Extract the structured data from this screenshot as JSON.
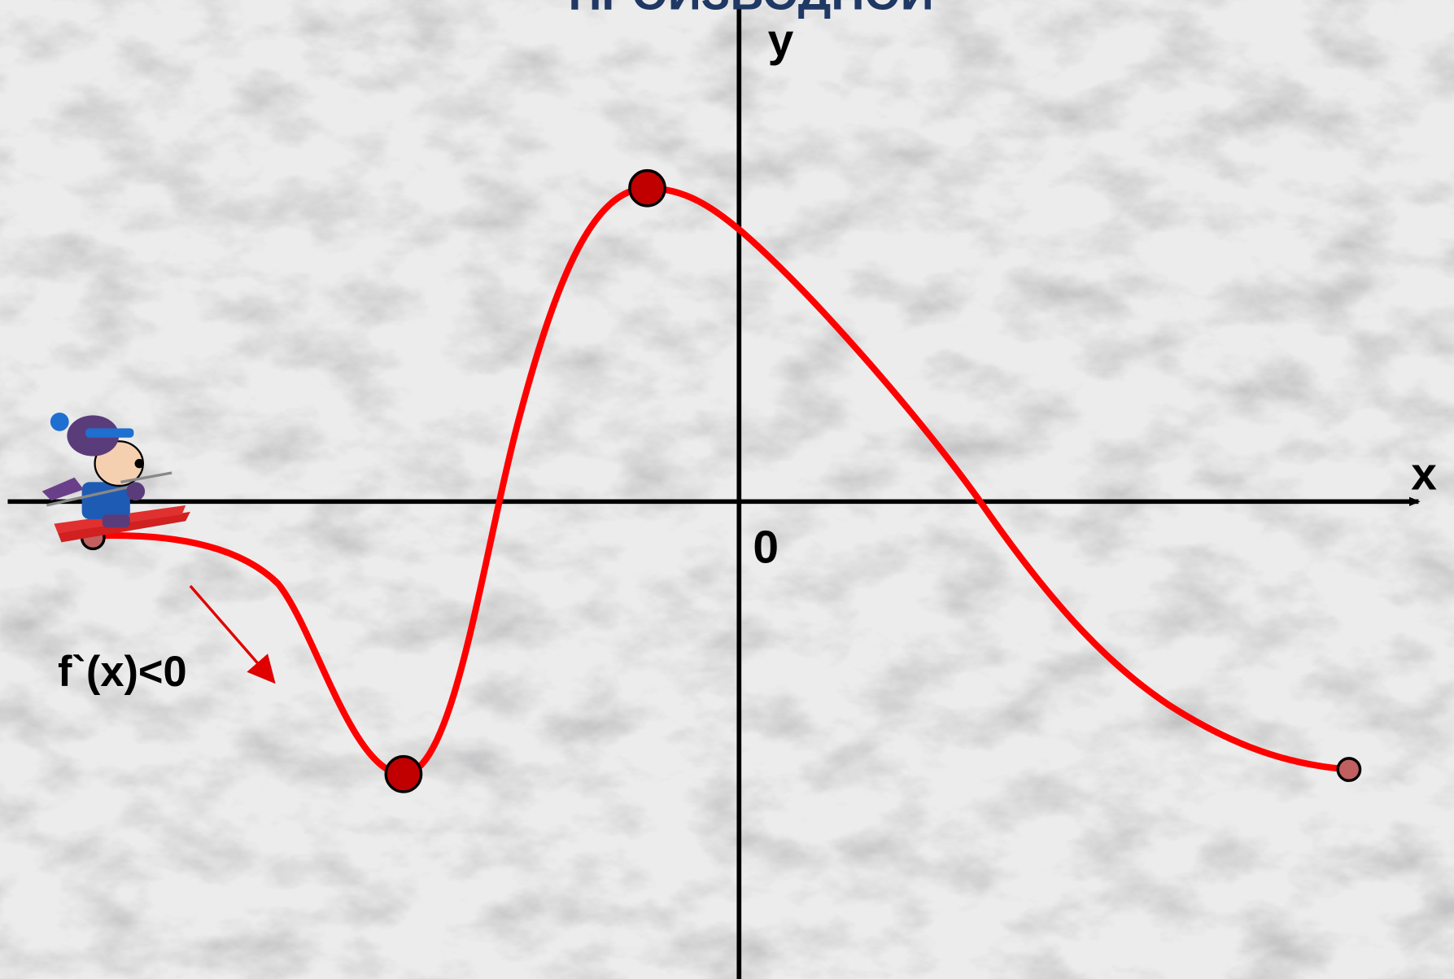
{
  "title": "ПРОИЗВОДНОЙ",
  "axes": {
    "y": "y",
    "x": "x",
    "origin": "0"
  },
  "annotation": "f`(x)<0"
}
